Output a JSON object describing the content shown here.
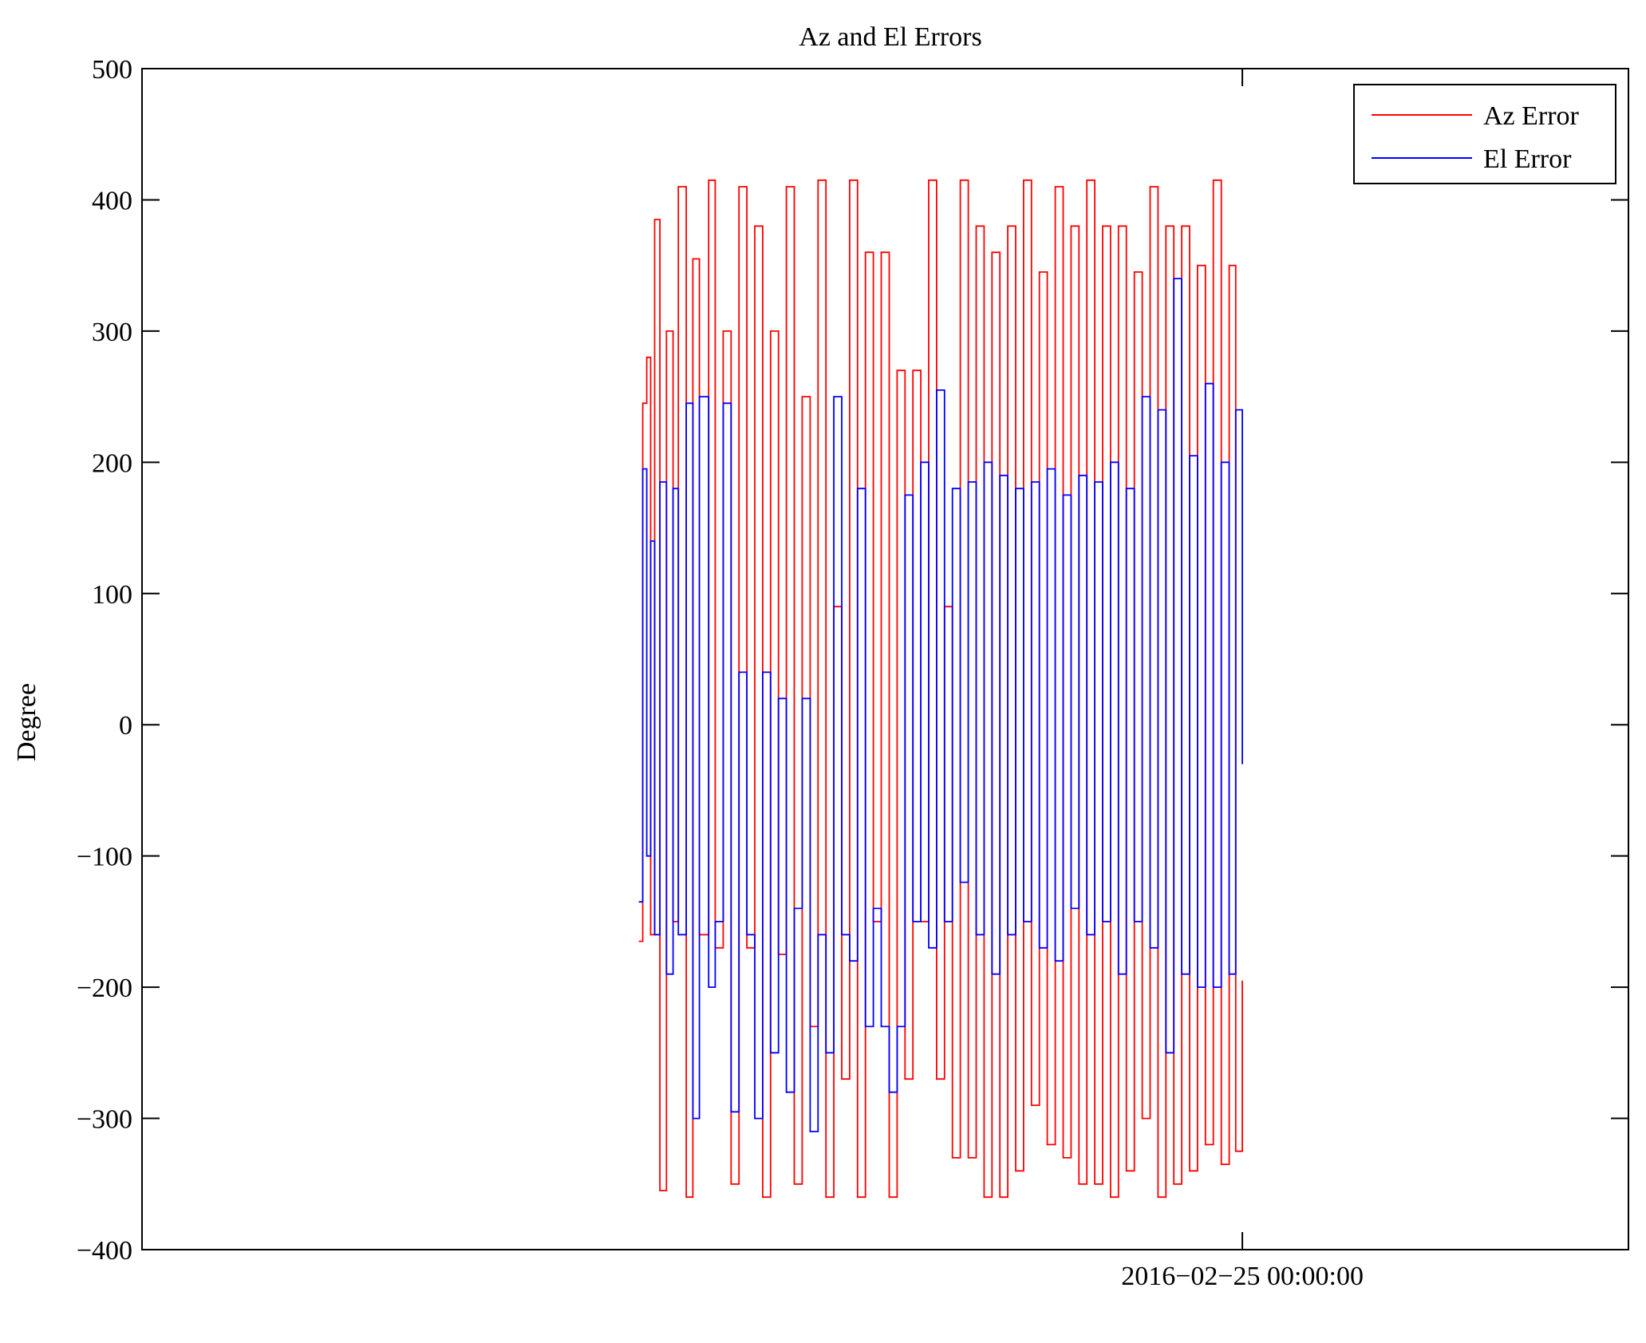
{
  "chart_data": {
    "type": "line",
    "title": "Az and El Errors",
    "xlabel": "",
    "ylabel": "Degree",
    "ylim": [
      -400,
      500
    ],
    "yticks": [
      "500",
      "400",
      "300",
      "200",
      "100",
      "0",
      "−100",
      "−200",
      "−300",
      "−400"
    ],
    "ytick_values": [
      500,
      400,
      300,
      200,
      100,
      0,
      -100,
      -200,
      -300,
      -400
    ],
    "xlim": [
      "2016-02-24 10:05:00",
      "2016-02-25 04:53:00"
    ],
    "xticks": [
      "2016−02−25 00:00:00"
    ],
    "xtick_values": [
      "2016-02-25 00:00:00"
    ],
    "data_range": [
      "2016-02-24 16:22:00",
      "2016-02-25 00:00:00"
    ],
    "legend_position": "top-right",
    "grid": false,
    "series": [
      {
        "name": "Az Error",
        "color": "#ff0000",
        "x": [
          "2016-02-24 16:22:00",
          "2016-02-24 16:25:00",
          "2016-02-24 16:28:00",
          "2016-02-24 16:31:00",
          "2016-02-24 16:34:00",
          "2016-02-24 16:38:00",
          "2016-02-24 16:43:00",
          "2016-02-24 16:48:00",
          "2016-02-24 16:52:00",
          "2016-02-24 16:58:00",
          "2016-02-24 17:03:00",
          "2016-02-24 17:08:00",
          "2016-02-24 17:15:00",
          "2016-02-24 17:20:00",
          "2016-02-24 17:26:00",
          "2016-02-24 17:32:00",
          "2016-02-24 17:38:00",
          "2016-02-24 17:44:00",
          "2016-02-24 17:50:00",
          "2016-02-24 17:56:00",
          "2016-02-24 18:02:00",
          "2016-02-24 18:08:00",
          "2016-02-24 18:14:00",
          "2016-02-24 18:20:00",
          "2016-02-24 18:26:00",
          "2016-02-24 18:32:00",
          "2016-02-24 18:38:00",
          "2016-02-24 18:44:00",
          "2016-02-24 18:50:00",
          "2016-02-24 18:56:00",
          "2016-02-24 19:02:00",
          "2016-02-24 19:08:00",
          "2016-02-24 19:14:00",
          "2016-02-24 19:20:00",
          "2016-02-24 19:26:00",
          "2016-02-24 19:32:00",
          "2016-02-24 19:38:00",
          "2016-02-24 19:44:00",
          "2016-02-24 19:50:00",
          "2016-02-24 19:56:00",
          "2016-02-24 20:02:00",
          "2016-02-24 20:08:00",
          "2016-02-24 20:14:00",
          "2016-02-24 20:20:00",
          "2016-02-24 20:26:00",
          "2016-02-24 20:32:00",
          "2016-02-24 20:38:00",
          "2016-02-24 20:44:00",
          "2016-02-24 20:50:00",
          "2016-02-24 20:56:00",
          "2016-02-24 21:02:00",
          "2016-02-24 21:08:00",
          "2016-02-24 21:14:00",
          "2016-02-24 21:20:00",
          "2016-02-24 21:26:00",
          "2016-02-24 21:32:00",
          "2016-02-24 21:38:00",
          "2016-02-24 21:44:00",
          "2016-02-24 21:50:00",
          "2016-02-24 21:56:00",
          "2016-02-24 22:02:00",
          "2016-02-24 22:08:00",
          "2016-02-24 22:14:00",
          "2016-02-24 22:20:00",
          "2016-02-24 22:26:00",
          "2016-02-24 22:32:00",
          "2016-02-24 22:38:00",
          "2016-02-24 22:44:00",
          "2016-02-24 22:50:00",
          "2016-02-24 22:56:00",
          "2016-02-24 23:02:00",
          "2016-02-24 23:08:00",
          "2016-02-24 23:14:00",
          "2016-02-24 23:20:00",
          "2016-02-24 23:26:00",
          "2016-02-24 23:32:00",
          "2016-02-24 23:38:00",
          "2016-02-24 23:44:00",
          "2016-02-24 23:50:00",
          "2016-02-24 23:55:00",
          "2016-02-25 00:00:00"
        ],
        "values": [
          -165,
          245,
          280,
          -160,
          385,
          -355,
          300,
          -150,
          410,
          -360,
          355,
          -160,
          415,
          -170,
          300,
          -350,
          410,
          -170,
          380,
          -360,
          300,
          -175,
          410,
          -350,
          250,
          -230,
          415,
          -360,
          90,
          -270,
          415,
          -360,
          360,
          -150,
          360,
          -360,
          270,
          -270,
          270,
          -150,
          415,
          -270,
          90,
          -330,
          415,
          -330,
          380,
          -360,
          360,
          -360,
          380,
          -340,
          415,
          -290,
          345,
          -320,
          410,
          -330,
          380,
          -350,
          415,
          -350,
          380,
          -360,
          380,
          -340,
          345,
          -300,
          410,
          -360,
          380,
          -350,
          380,
          -340,
          350,
          -320,
          415,
          -335,
          350,
          -325,
          -195
        ]
      },
      {
        "name": "El Error",
        "color": "#0000ff",
        "x": [
          "2016-02-24 16:22:00",
          "2016-02-24 16:25:00",
          "2016-02-24 16:28:00",
          "2016-02-24 16:31:00",
          "2016-02-24 16:34:00",
          "2016-02-24 16:38:00",
          "2016-02-24 16:43:00",
          "2016-02-24 16:48:00",
          "2016-02-24 16:52:00",
          "2016-02-24 16:58:00",
          "2016-02-24 17:03:00",
          "2016-02-24 17:08:00",
          "2016-02-24 17:15:00",
          "2016-02-24 17:20:00",
          "2016-02-24 17:26:00",
          "2016-02-24 17:32:00",
          "2016-02-24 17:38:00",
          "2016-02-24 17:44:00",
          "2016-02-24 17:50:00",
          "2016-02-24 17:56:00",
          "2016-02-24 18:02:00",
          "2016-02-24 18:08:00",
          "2016-02-24 18:14:00",
          "2016-02-24 18:20:00",
          "2016-02-24 18:26:00",
          "2016-02-24 18:32:00",
          "2016-02-24 18:38:00",
          "2016-02-24 18:44:00",
          "2016-02-24 18:50:00",
          "2016-02-24 18:56:00",
          "2016-02-24 19:02:00",
          "2016-02-24 19:08:00",
          "2016-02-24 19:14:00",
          "2016-02-24 19:20:00",
          "2016-02-24 19:26:00",
          "2016-02-24 19:32:00",
          "2016-02-24 19:38:00",
          "2016-02-24 19:44:00",
          "2016-02-24 19:50:00",
          "2016-02-24 19:56:00",
          "2016-02-24 20:02:00",
          "2016-02-24 20:08:00",
          "2016-02-24 20:14:00",
          "2016-02-24 20:20:00",
          "2016-02-24 20:26:00",
          "2016-02-24 20:32:00",
          "2016-02-24 20:38:00",
          "2016-02-24 20:44:00",
          "2016-02-24 20:50:00",
          "2016-02-24 20:56:00",
          "2016-02-24 21:02:00",
          "2016-02-24 21:08:00",
          "2016-02-24 21:14:00",
          "2016-02-24 21:20:00",
          "2016-02-24 21:26:00",
          "2016-02-24 21:32:00",
          "2016-02-24 21:38:00",
          "2016-02-24 21:44:00",
          "2016-02-24 21:50:00",
          "2016-02-24 21:56:00",
          "2016-02-24 22:02:00",
          "2016-02-24 22:08:00",
          "2016-02-24 22:14:00",
          "2016-02-24 22:20:00",
          "2016-02-24 22:26:00",
          "2016-02-24 22:32:00",
          "2016-02-24 22:38:00",
          "2016-02-24 22:44:00",
          "2016-02-24 22:50:00",
          "2016-02-24 22:56:00",
          "2016-02-24 23:02:00",
          "2016-02-24 23:08:00",
          "2016-02-24 23:14:00",
          "2016-02-24 23:20:00",
          "2016-02-24 23:26:00",
          "2016-02-24 23:32:00",
          "2016-02-24 23:38:00",
          "2016-02-24 23:44:00",
          "2016-02-24 23:50:00",
          "2016-02-24 23:55:00",
          "2016-02-25 00:00:00"
        ],
        "values": [
          -135,
          195,
          -100,
          140,
          -160,
          185,
          -190,
          180,
          -160,
          245,
          -300,
          250,
          -200,
          -150,
          245,
          -295,
          40,
          -160,
          -300,
          40,
          -250,
          20,
          -280,
          -140,
          20,
          -310,
          -160,
          -250,
          250,
          -160,
          -180,
          180,
          -230,
          -140,
          -230,
          -280,
          -230,
          175,
          -150,
          200,
          -170,
          255,
          -150,
          180,
          -120,
          185,
          -160,
          200,
          -190,
          190,
          -160,
          180,
          -150,
          185,
          -170,
          195,
          -180,
          175,
          -140,
          190,
          -160,
          185,
          -150,
          200,
          -190,
          180,
          -150,
          250,
          -170,
          240,
          -250,
          340,
          -190,
          205,
          -200,
          260,
          -200,
          200,
          -190,
          240,
          -30
        ]
      }
    ]
  }
}
